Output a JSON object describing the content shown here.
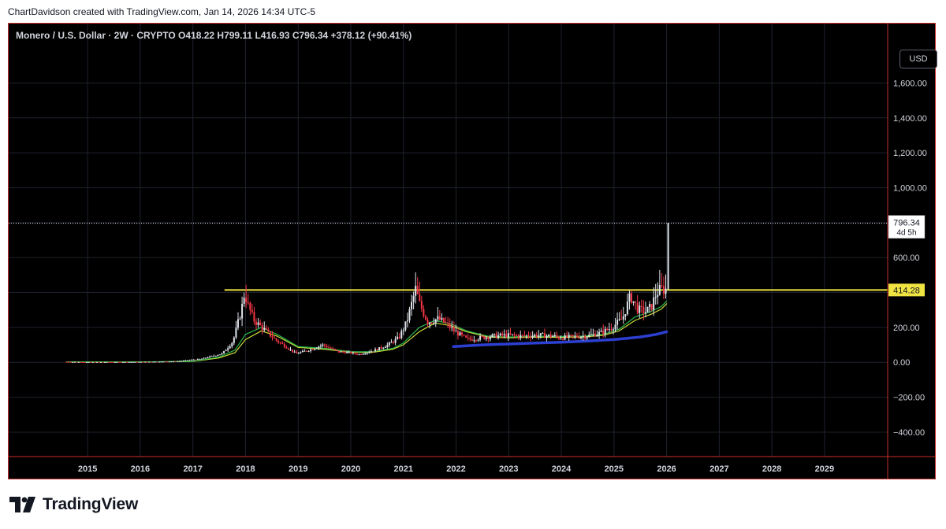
{
  "header": {
    "credit": "ChartDavidson created with TradingView.com, Jan 14, 2026 14:34 UTC-5"
  },
  "usd_button": "USD",
  "footer": {
    "brand": "TradingView"
  },
  "chart_data": {
    "type": "candlestick",
    "legend": {
      "symbol": "Monero / U.S. Dollar · 2W · CRYPTO",
      "open": "O418.22",
      "high": "H799.11",
      "low": "L416.93",
      "close": "C796.34",
      "change": "+378.12 (+90.41%)"
    },
    "y_ticks": [
      1600,
      1400,
      1200,
      1000,
      800,
      600,
      400,
      200,
      0,
      -200,
      -400
    ],
    "y_tick_labels": [
      "1,600.00",
      "1,400.00",
      "1,200.00",
      "1,000.00",
      "",
      "600.00",
      "",
      "200.00",
      "0.00",
      "−200.00",
      "−400.00"
    ],
    "x_labels": [
      "2015",
      "2016",
      "2017",
      "2018",
      "2019",
      "2020",
      "2021",
      "2022",
      "2023",
      "2024",
      "2025",
      "2026",
      "2027",
      "2028",
      "2029"
    ],
    "ylim": [
      -540,
      1940
    ],
    "xlim": [
      2013.5,
      2030.2
    ],
    "last_price": {
      "value": 796.34,
      "label": "796.34",
      "countdown": "4d 5h"
    },
    "horizontal_line": {
      "value": 414.28,
      "label": "414.28",
      "color": "#f0e442",
      "x_start": 2017.6
    },
    "colors": {
      "up": "#e0e3eb",
      "down": "#f23645",
      "green_ma": "#2db84d",
      "yellow_ma": "#cddc39",
      "blue_ma": "#2c3fd1",
      "hline": "#f0e442"
    },
    "price_path": [
      [
        2014.6,
        3
      ],
      [
        2015.0,
        1
      ],
      [
        2016.0,
        2
      ],
      [
        2016.7,
        5
      ],
      [
        2017.2,
        20
      ],
      [
        2017.6,
        50
      ],
      [
        2017.8,
        120
      ],
      [
        2017.96,
        300
      ],
      [
        2018.02,
        400
      ],
      [
        2018.08,
        330
      ],
      [
        2018.2,
        240
      ],
      [
        2018.35,
        200
      ],
      [
        2018.6,
        130
      ],
      [
        2018.9,
        70
      ],
      [
        2019.0,
        50
      ],
      [
        2019.3,
        75
      ],
      [
        2019.5,
        100
      ],
      [
        2019.8,
        60
      ],
      [
        2020.0,
        55
      ],
      [
        2020.2,
        45
      ],
      [
        2020.5,
        70
      ],
      [
        2020.75,
        100
      ],
      [
        2020.95,
        140
      ],
      [
        2021.1,
        230
      ],
      [
        2021.27,
        420
      ],
      [
        2021.35,
        330
      ],
      [
        2021.5,
        230
      ],
      [
        2021.7,
        250
      ],
      [
        2021.85,
        220
      ],
      [
        2022.0,
        180
      ],
      [
        2022.25,
        130
      ],
      [
        2022.5,
        140
      ],
      [
        2022.75,
        150
      ],
      [
        2023.0,
        155
      ],
      [
        2023.3,
        150
      ],
      [
        2023.6,
        155
      ],
      [
        2023.9,
        150
      ],
      [
        2024.0,
        140
      ],
      [
        2024.2,
        145
      ],
      [
        2024.5,
        150
      ],
      [
        2024.8,
        170
      ],
      [
        2025.0,
        200
      ],
      [
        2025.2,
        250
      ],
      [
        2025.35,
        380
      ],
      [
        2025.5,
        300
      ],
      [
        2025.65,
        290
      ],
      [
        2025.75,
        320
      ],
      [
        2025.85,
        400
      ],
      [
        2025.95,
        420
      ],
      [
        2026.03,
        418
      ]
    ],
    "last_candle": {
      "x": 2026.03,
      "open": 418.22,
      "high": 799.11,
      "low": 416.93,
      "close": 796.34
    },
    "green_ma": [
      [
        2014.6,
        2
      ],
      [
        2016.0,
        2
      ],
      [
        2017.0,
        6
      ],
      [
        2017.5,
        30
      ],
      [
        2017.8,
        70
      ],
      [
        2018.0,
        160
      ],
      [
        2018.3,
        200
      ],
      [
        2018.6,
        160
      ],
      [
        2019.0,
        90
      ],
      [
        2019.5,
        80
      ],
      [
        2020.0,
        60
      ],
      [
        2020.4,
        60
      ],
      [
        2020.8,
        80
      ],
      [
        2021.0,
        110
      ],
      [
        2021.3,
        200
      ],
      [
        2021.6,
        240
      ],
      [
        2021.9,
        220
      ],
      [
        2022.2,
        180
      ],
      [
        2022.6,
        150
      ],
      [
        2023.0,
        145
      ],
      [
        2023.5,
        150
      ],
      [
        2024.0,
        148
      ],
      [
        2024.4,
        150
      ],
      [
        2024.8,
        160
      ],
      [
        2025.1,
        190
      ],
      [
        2025.4,
        260
      ],
      [
        2025.7,
        290
      ],
      [
        2025.9,
        320
      ],
      [
        2026.0,
        350
      ]
    ],
    "yellow_ma": [
      [
        2014.6,
        2
      ],
      [
        2016.0,
        2
      ],
      [
        2017.0,
        5
      ],
      [
        2017.5,
        25
      ],
      [
        2017.8,
        55
      ],
      [
        2018.0,
        130
      ],
      [
        2018.3,
        180
      ],
      [
        2018.6,
        150
      ],
      [
        2019.0,
        85
      ],
      [
        2019.5,
        75
      ],
      [
        2020.0,
        58
      ],
      [
        2020.4,
        56
      ],
      [
        2020.8,
        75
      ],
      [
        2021.0,
        100
      ],
      [
        2021.3,
        175
      ],
      [
        2021.6,
        225
      ],
      [
        2021.9,
        210
      ],
      [
        2022.2,
        175
      ],
      [
        2022.6,
        145
      ],
      [
        2023.0,
        140
      ],
      [
        2023.5,
        145
      ],
      [
        2024.0,
        143
      ],
      [
        2024.4,
        145
      ],
      [
        2024.8,
        155
      ],
      [
        2025.1,
        180
      ],
      [
        2025.4,
        240
      ],
      [
        2025.7,
        275
      ],
      [
        2025.9,
        305
      ],
      [
        2026.0,
        335
      ]
    ],
    "blue_ma": [
      [
        2021.95,
        90
      ],
      [
        2022.5,
        100
      ],
      [
        2023.0,
        105
      ],
      [
        2023.5,
        110
      ],
      [
        2024.0,
        115
      ],
      [
        2024.5,
        122
      ],
      [
        2025.0,
        130
      ],
      [
        2025.5,
        145
      ],
      [
        2025.8,
        160
      ],
      [
        2026.0,
        175
      ]
    ]
  }
}
